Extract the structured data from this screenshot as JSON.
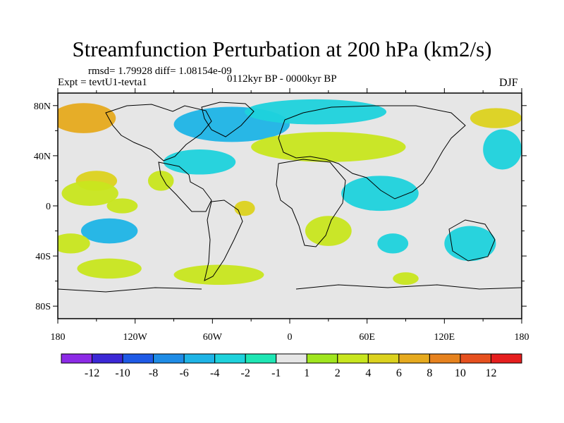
{
  "title": "Streamfunction Perturbation at 200 hPa (km2/s)",
  "stats": "rmsd= 1.79928 diff= 1.08154e-09",
  "experiment": "Expt = tevtU1-tevta1",
  "period": "0112kyr BP - 0000kyr BP",
  "season": "DJF",
  "chart_data": {
    "type": "heatmap",
    "title": "Streamfunction Perturbation at 200 hPa (km2/s)",
    "xlabel": "",
    "ylabel": "",
    "xlim": [
      -180,
      180
    ],
    "ylim": [
      -90,
      90
    ],
    "x_ticks": [
      {
        "value": -180,
        "label": "180"
      },
      {
        "value": -120,
        "label": "120W"
      },
      {
        "value": -60,
        "label": "60W"
      },
      {
        "value": 0,
        "label": "0"
      },
      {
        "value": 60,
        "label": "60E"
      },
      {
        "value": 120,
        "label": "120E"
      },
      {
        "value": 180,
        "label": "180"
      }
    ],
    "y_ticks": [
      {
        "value": 80,
        "label": "80N"
      },
      {
        "value": 40,
        "label": "40N"
      },
      {
        "value": 0,
        "label": "0"
      },
      {
        "value": -40,
        "label": "40S"
      },
      {
        "value": -80,
        "label": "80S"
      }
    ],
    "colorbar": {
      "colors": [
        "#8c2ae6",
        "#3c28d6",
        "#1e5ae6",
        "#1e8ce6",
        "#1eb4e6",
        "#1ed2dc",
        "#1ee6b4",
        "#e6e6e6",
        "#a0e61e",
        "#c8e61e",
        "#dcd21e",
        "#e6aa1e",
        "#e6821e",
        "#e6501e",
        "#e61e1e"
      ],
      "labels": [
        {
          "after": 0,
          "text": "-12"
        },
        {
          "after": 1,
          "text": "-10"
        },
        {
          "after": 2,
          "text": "-8"
        },
        {
          "after": 3,
          "text": "-6"
        },
        {
          "after": 4,
          "text": "-4"
        },
        {
          "after": 5,
          "text": "-2"
        },
        {
          "after": 6,
          "text": "-1"
        },
        {
          "after": 7,
          "text": "1"
        },
        {
          "after": 8,
          "text": "2"
        },
        {
          "after": 9,
          "text": "4"
        },
        {
          "after": 10,
          "text": "6"
        },
        {
          "after": 11,
          "text": "8"
        },
        {
          "after": 12,
          "text": "10"
        },
        {
          "after": 13,
          "text": "12"
        }
      ]
    },
    "fields": [
      {
        "lon": -160,
        "lat": 70,
        "rlon": 25,
        "rlat": 12,
        "value": 6
      },
      {
        "lon": -150,
        "lat": 20,
        "rlon": 16,
        "rlat": 8,
        "value": 4
      },
      {
        "lon": -155,
        "lat": 10,
        "rlon": 22,
        "rlat": 10,
        "value": 2
      },
      {
        "lon": -130,
        "lat": 0,
        "rlon": 12,
        "rlat": 6,
        "value": 2
      },
      {
        "lon": -140,
        "lat": -20,
        "rlon": 22,
        "rlat": 10,
        "value": -4
      },
      {
        "lon": -170,
        "lat": -30,
        "rlon": 15,
        "rlat": 8,
        "value": 2
      },
      {
        "lon": -100,
        "lat": 20,
        "rlon": 10,
        "rlat": 8,
        "value": 2
      },
      {
        "lon": -45,
        "lat": 65,
        "rlon": 45,
        "rlat": 14,
        "value": -4
      },
      {
        "lon": -70,
        "lat": 35,
        "rlon": 28,
        "rlat": 10,
        "value": -2
      },
      {
        "lon": 20,
        "lat": 75,
        "rlon": 55,
        "rlat": 10,
        "value": -2
      },
      {
        "lon": 30,
        "lat": 47,
        "rlon": 60,
        "rlat": 12,
        "value": 2
      },
      {
        "lon": 70,
        "lat": 10,
        "rlon": 30,
        "rlat": 14,
        "value": -2
      },
      {
        "lon": 165,
        "lat": 45,
        "rlon": 15,
        "rlat": 16,
        "value": -2
      },
      {
        "lon": -35,
        "lat": -2,
        "rlon": 8,
        "rlat": 6,
        "value": 4
      },
      {
        "lon": -55,
        "lat": -55,
        "rlon": 35,
        "rlat": 8,
        "value": 2
      },
      {
        "lon": -140,
        "lat": -50,
        "rlon": 25,
        "rlat": 8,
        "value": 2
      },
      {
        "lon": 30,
        "lat": -20,
        "rlon": 18,
        "rlat": 12,
        "value": 2
      },
      {
        "lon": 80,
        "lat": -30,
        "rlon": 12,
        "rlat": 8,
        "value": -2
      },
      {
        "lon": 140,
        "lat": -30,
        "rlon": 20,
        "rlat": 14,
        "value": -2
      },
      {
        "lon": 160,
        "lat": 70,
        "rlon": 20,
        "rlat": 8,
        "value": 4
      },
      {
        "lon": 90,
        "lat": -58,
        "rlon": 10,
        "rlat": 5,
        "value": 2
      }
    ]
  }
}
